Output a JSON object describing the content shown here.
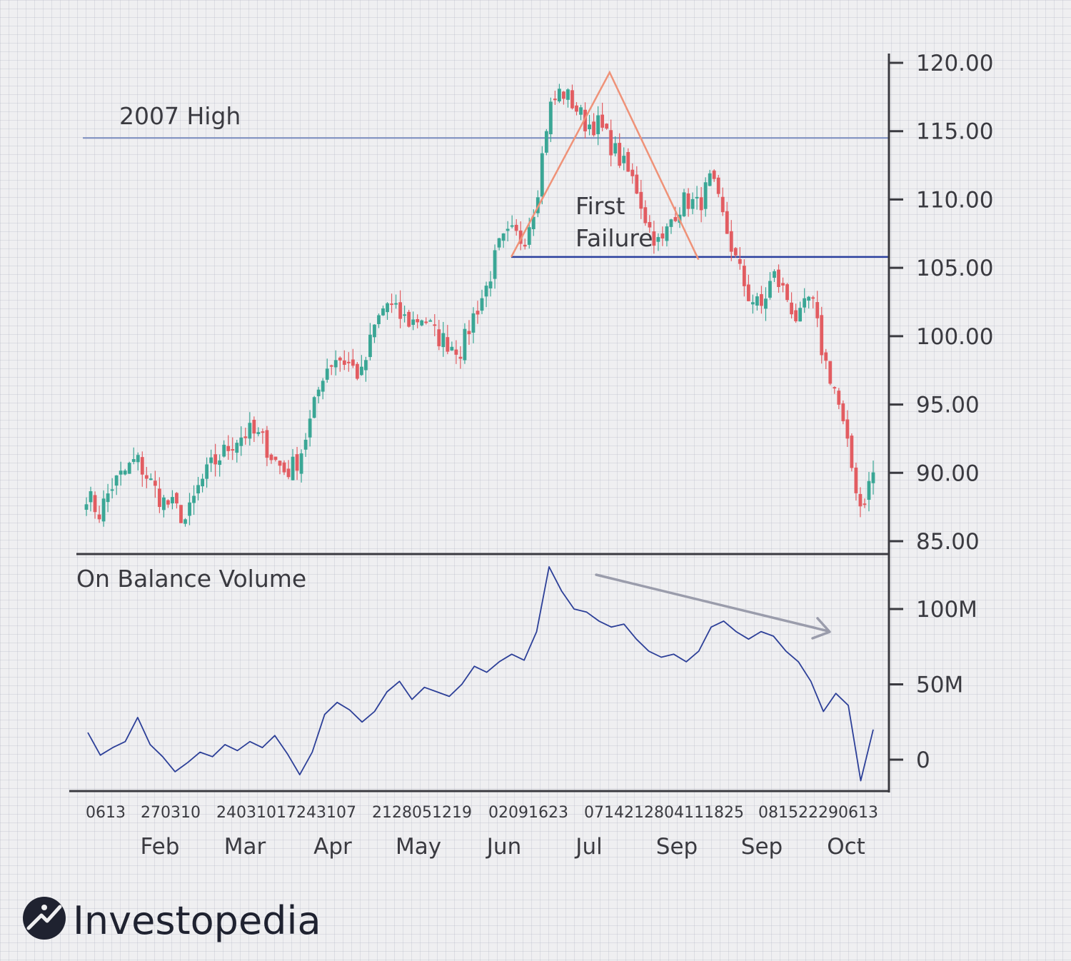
{
  "chart_data": [
    {
      "type": "candlestick",
      "title": "",
      "ylabel": "",
      "ylim": [
        85,
        120
      ],
      "yticks": [
        "120.00",
        "115.00",
        "110.00",
        "105.00",
        "100.00",
        "95.00",
        "90.00",
        "85.00"
      ],
      "ytick_values": [
        120,
        115,
        110,
        105,
        100,
        95,
        90,
        85
      ],
      "colors": {
        "up": "#3aa695",
        "down": "#e25c61"
      },
      "annotations": {
        "high_line": {
          "label": "2007 High",
          "value": 114.5,
          "color": "#7b8dc0"
        },
        "support_line": {
          "value": 105.8,
          "color": "#2a3f9e"
        },
        "failure_label_1": "First",
        "failure_label_2": "Failure",
        "failure_color": "#ef9278"
      },
      "price_path": [
        88.5,
        87.0,
        89.0,
        90.0,
        91.0,
        89.5,
        88.0,
        87.5,
        86.5,
        89.0,
        90.5,
        91.5,
        92.5,
        93.0,
        92.5,
        91.0,
        90.0,
        91.0,
        94.0,
        97.5,
        98.5,
        98.0,
        97.0,
        100.5,
        102.5,
        101.5,
        101.0,
        101.5,
        100.0,
        99.5,
        99.0,
        101.5,
        103.5,
        106.5,
        107.5,
        107.0,
        110.0,
        116.5,
        118.0,
        117.0,
        115.5,
        115.5,
        114.0,
        112.5,
        111.0,
        108.0,
        106.5,
        109.0,
        110.0,
        109.5,
        111.5,
        108.5,
        105.5,
        103.0,
        102.0,
        104.5,
        103.0,
        101.0,
        103.0,
        98.5,
        96.0,
        91.5,
        87.5,
        90.0
      ]
    },
    {
      "type": "line",
      "title": "On Balance Volume",
      "ylim": [
        -10,
        125
      ],
      "yticks": [
        "100M",
        "50M",
        "0"
      ],
      "ytick_values": [
        100,
        50,
        0
      ],
      "series": [
        {
          "color": "#2c3f98",
          "values": [
            18,
            3,
            8,
            12,
            28,
            10,
            2,
            -8,
            -2,
            5,
            2,
            10,
            6,
            12,
            8,
            16,
            4,
            -10,
            5,
            30,
            38,
            33,
            25,
            32,
            45,
            52,
            40,
            48,
            45,
            42,
            50,
            62,
            58,
            65,
            70,
            66,
            85,
            128,
            112,
            100,
            98,
            92,
            88,
            90,
            80,
            72,
            68,
            70,
            65,
            72,
            88,
            92,
            85,
            80,
            85,
            82,
            72,
            65,
            52,
            32,
            44,
            36,
            -14,
            20
          ]
        }
      ],
      "trend_arrow": {
        "color": "#9a9cab"
      }
    }
  ],
  "x_axis": {
    "day_groups": [
      "0613",
      "270310",
      "24031017243107",
      "2128051219",
      "02091623",
      "0714212804111825",
      "081522290613"
    ],
    "months": [
      "Feb",
      "Mar",
      "Apr",
      "May",
      "Jun",
      "Jul",
      "Sep",
      "Sep",
      "Oct"
    ]
  },
  "logo": {
    "text": "Investopedia",
    "mark": "investopedia-logo-mark"
  }
}
